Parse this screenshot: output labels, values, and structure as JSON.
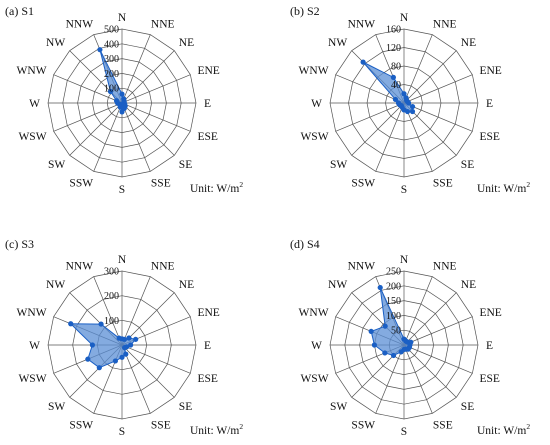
{
  "figure": {
    "unit_text": "Unit:",
    "unit_value": "W/m",
    "unit_exponent": "2",
    "directions": [
      "N",
      "NNE",
      "NE",
      "ENE",
      "E",
      "ESE",
      "SE",
      "SSE",
      "S",
      "SSW",
      "SW",
      "WSW",
      "W",
      "WNW",
      "NW",
      "NNW"
    ],
    "series_fill": "#5b8fd6",
    "series_stroke": "#1a5fc4",
    "grid_color": "#555555"
  },
  "chart_data": [
    {
      "type": "radar",
      "title": "(a) S1",
      "rmax": 500,
      "ticks": [
        100,
        200,
        300,
        400,
        500
      ],
      "values": [
        60,
        30,
        20,
        15,
        15,
        20,
        30,
        40,
        60,
        30,
        15,
        20,
        30,
        40,
        110,
        390
      ]
    },
    {
      "type": "radar",
      "title": "(b) S2",
      "rmax": 160,
      "ticks": [
        40,
        80,
        120,
        160
      ],
      "values": [
        20,
        12,
        8,
        8,
        10,
        20,
        26,
        20,
        15,
        10,
        8,
        10,
        12,
        20,
        125,
        60
      ]
    },
    {
      "type": "radar",
      "title": "(c) S3",
      "rmax": 300,
      "ticks": [
        100,
        200,
        300
      ],
      "values": [
        25,
        25,
        40,
        60,
        35,
        20,
        15,
        40,
        50,
        70,
        130,
        150,
        120,
        225,
        120,
        30
      ]
    },
    {
      "type": "radar",
      "title": "(d) S4",
      "rmax": 250,
      "ticks": [
        50,
        100,
        150,
        200,
        250
      ],
      "values": [
        20,
        15,
        15,
        25,
        20,
        20,
        20,
        15,
        15,
        25,
        50,
        70,
        100,
        120,
        90,
        210
      ]
    }
  ]
}
